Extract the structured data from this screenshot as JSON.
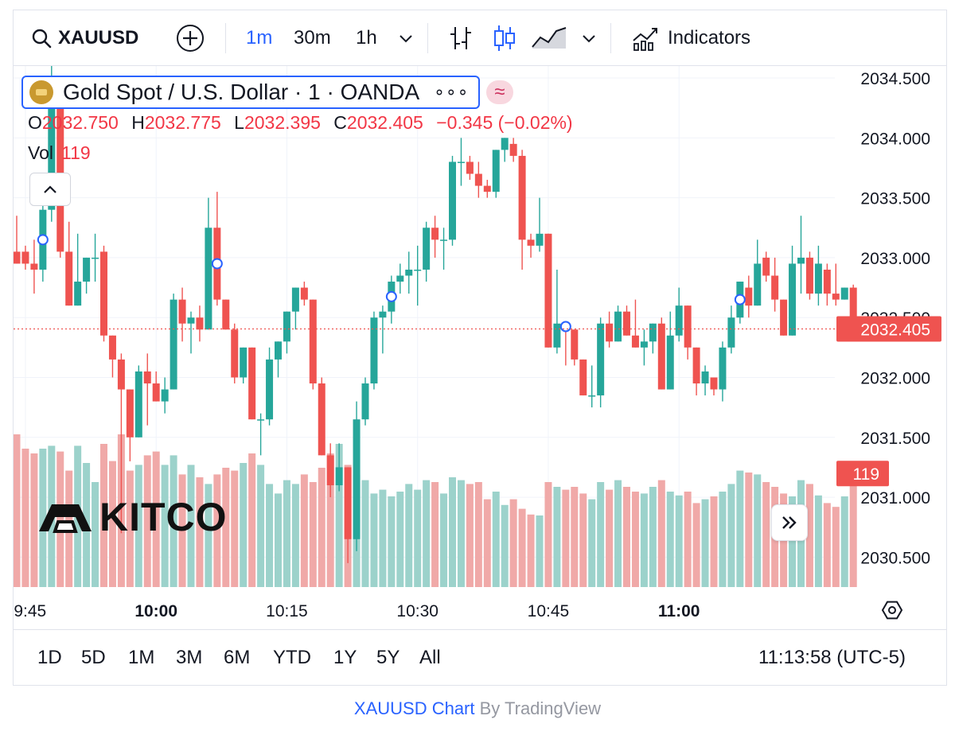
{
  "toolbar": {
    "symbol": "XAUUSD",
    "intervals": [
      "1m",
      "30m",
      "1h"
    ],
    "active_interval": "1m",
    "indicators_label": "Indicators"
  },
  "legend": {
    "title": "Gold Spot / U.S. Dollar · 1 · OANDA",
    "more": "∘∘∘",
    "approx": "≈",
    "o_label": "O",
    "o": "2032.750",
    "h_label": "H",
    "h": "2032.775",
    "l_label": "L",
    "l": "2032.395",
    "c_label": "C",
    "c": "2032.405",
    "change": "−0.345 (−0.02%)",
    "vol_label": "Vol",
    "vol": "119"
  },
  "watermark": "KITCO",
  "range_buttons": [
    "1D",
    "5D",
    "1M",
    "3M",
    "6M",
    "YTD",
    "1Y",
    "5Y",
    "All"
  ],
  "clock": "11:13:58 (UTC-5)",
  "footer": {
    "link": "XAUUSD Chart",
    "rest": " By TradingView"
  },
  "colors": {
    "up": "#26a69a",
    "down": "#ef5350",
    "up_vol": "#9cd2cb",
    "down_vol": "#f0a9a8",
    "accent": "#2962ff"
  },
  "chart_data": {
    "type": "candlestick",
    "symbol": "XAUUSD",
    "interval": "1m",
    "y_ticks": [
      "2034.500",
      "2034.000",
      "2033.500",
      "2033.000",
      "2032.500",
      "2032.000",
      "2031.500",
      "2031.000",
      "2030.500"
    ],
    "ylim": [
      2030.25,
      2034.6
    ],
    "x_ticks": [
      {
        "label": "09:45",
        "minute": 1,
        "bold": false
      },
      {
        "label": "10:00",
        "minute": 16,
        "bold": true
      },
      {
        "label": "10:15",
        "minute": 31,
        "bold": false
      },
      {
        "label": "10:30",
        "minute": 46,
        "bold": false
      },
      {
        "label": "10:45",
        "minute": 61,
        "bold": false
      },
      {
        "label": "11:00",
        "minute": 76,
        "bold": true
      }
    ],
    "last_price": "2032.405",
    "last_price_value": 2032.405,
    "last_volume": "119",
    "event_markers_minute": [
      3,
      23,
      43,
      63,
      83
    ],
    "candles": [
      {
        "o": 2033.05,
        "h": 2033.35,
        "l": 2032.95,
        "c": 2032.95,
        "v": 160
      },
      {
        "o": 2033.05,
        "h": 2033.1,
        "l": 2032.9,
        "c": 2032.95,
        "v": 145
      },
      {
        "o": 2032.95,
        "h": 2033.15,
        "l": 2032.7,
        "c": 2032.9,
        "v": 140
      },
      {
        "o": 2032.9,
        "h": 2033.5,
        "l": 2032.8,
        "c": 2033.4,
        "v": 145
      },
      {
        "o": 2033.4,
        "h": 2034.6,
        "l": 2033.3,
        "c": 2034.5,
        "v": 148
      },
      {
        "o": 2034.4,
        "h": 2034.5,
        "l": 2033.0,
        "c": 2033.05,
        "v": 142
      },
      {
        "o": 2033.05,
        "h": 2033.3,
        "l": 2032.6,
        "c": 2032.6,
        "v": 122
      },
      {
        "o": 2032.6,
        "h": 2033.2,
        "l": 2032.6,
        "c": 2032.8,
        "v": 148
      },
      {
        "o": 2032.8,
        "h": 2033.0,
        "l": 2032.7,
        "c": 2033.0,
        "v": 130
      },
      {
        "o": 2033.0,
        "h": 2033.2,
        "l": 2032.8,
        "c": 2033.0,
        "v": 110
      },
      {
        "o": 2033.05,
        "h": 2033.1,
        "l": 2032.3,
        "c": 2032.35,
        "v": 150
      },
      {
        "o": 2032.35,
        "h": 2032.35,
        "l": 2032.0,
        "c": 2032.15,
        "v": 132
      },
      {
        "o": 2032.15,
        "h": 2032.2,
        "l": 2030.7,
        "c": 2031.9,
        "v": 160
      },
      {
        "o": 2031.9,
        "h": 2031.9,
        "l": 2031.3,
        "c": 2031.5,
        "v": 122
      },
      {
        "o": 2031.5,
        "h": 2032.1,
        "l": 2031.5,
        "c": 2032.05,
        "v": 128
      },
      {
        "o": 2032.05,
        "h": 2032.2,
        "l": 2031.6,
        "c": 2031.95,
        "v": 138
      },
      {
        "o": 2031.95,
        "h": 2032.05,
        "l": 2031.8,
        "c": 2031.8,
        "v": 142
      },
      {
        "o": 2031.8,
        "h": 2032.0,
        "l": 2031.7,
        "c": 2031.9,
        "v": 128
      },
      {
        "o": 2031.9,
        "h": 2032.7,
        "l": 2031.9,
        "c": 2032.65,
        "v": 138
      },
      {
        "o": 2032.65,
        "h": 2032.75,
        "l": 2032.3,
        "c": 2032.45,
        "v": 118
      },
      {
        "o": 2032.45,
        "h": 2032.55,
        "l": 2032.2,
        "c": 2032.5,
        "v": 128
      },
      {
        "o": 2032.5,
        "h": 2032.6,
        "l": 2032.3,
        "c": 2032.4,
        "v": 115
      },
      {
        "o": 2032.4,
        "h": 2033.5,
        "l": 2032.4,
        "c": 2033.25,
        "v": 108
      },
      {
        "o": 2033.25,
        "h": 2033.55,
        "l": 2032.6,
        "c": 2032.65,
        "v": 118
      },
      {
        "o": 2032.65,
        "h": 2032.65,
        "l": 2032.4,
        "c": 2032.4,
        "v": 125
      },
      {
        "o": 2032.4,
        "h": 2032.45,
        "l": 2031.95,
        "c": 2032.0,
        "v": 122
      },
      {
        "o": 2032.0,
        "h": 2032.25,
        "l": 2031.95,
        "c": 2032.25,
        "v": 130
      },
      {
        "o": 2032.25,
        "h": 2032.25,
        "l": 2031.65,
        "c": 2031.65,
        "v": 140
      },
      {
        "o": 2031.65,
        "h": 2031.7,
        "l": 2031.35,
        "c": 2031.65,
        "v": 128
      },
      {
        "o": 2031.65,
        "h": 2032.25,
        "l": 2031.6,
        "c": 2032.15,
        "v": 108
      },
      {
        "o": 2032.15,
        "h": 2032.3,
        "l": 2032.0,
        "c": 2032.3,
        "v": 98
      },
      {
        "o": 2032.3,
        "h": 2032.55,
        "l": 2032.2,
        "c": 2032.55,
        "v": 112
      },
      {
        "o": 2032.55,
        "h": 2032.75,
        "l": 2032.4,
        "c": 2032.75,
        "v": 108
      },
      {
        "o": 2032.75,
        "h": 2032.8,
        "l": 2032.6,
        "c": 2032.65,
        "v": 118
      },
      {
        "o": 2032.65,
        "h": 2032.65,
        "l": 2031.9,
        "c": 2031.95,
        "v": 110
      },
      {
        "o": 2031.95,
        "h": 2032.0,
        "l": 2031.35,
        "c": 2031.35,
        "v": 125
      },
      {
        "o": 2031.35,
        "h": 2031.45,
        "l": 2031.0,
        "c": 2031.1,
        "v": 140
      },
      {
        "o": 2031.1,
        "h": 2031.45,
        "l": 2031.05,
        "c": 2031.25,
        "v": 150
      },
      {
        "o": 2031.25,
        "h": 2031.25,
        "l": 2030.45,
        "c": 2030.65,
        "v": 128
      },
      {
        "o": 2030.65,
        "h": 2031.8,
        "l": 2030.55,
        "c": 2031.65,
        "v": 118
      },
      {
        "o": 2031.65,
        "h": 2032.0,
        "l": 2031.6,
        "c": 2031.95,
        "v": 112
      },
      {
        "o": 2031.95,
        "h": 2032.55,
        "l": 2031.9,
        "c": 2032.5,
        "v": 98
      },
      {
        "o": 2032.5,
        "h": 2032.6,
        "l": 2032.2,
        "c": 2032.55,
        "v": 102
      },
      {
        "o": 2032.55,
        "h": 2032.85,
        "l": 2032.45,
        "c": 2032.8,
        "v": 95
      },
      {
        "o": 2032.8,
        "h": 2032.95,
        "l": 2032.7,
        "c": 2032.85,
        "v": 100
      },
      {
        "o": 2032.85,
        "h": 2033.05,
        "l": 2032.7,
        "c": 2032.9,
        "v": 108
      },
      {
        "o": 2032.9,
        "h": 2033.1,
        "l": 2032.6,
        "c": 2032.9,
        "v": 102
      },
      {
        "o": 2032.9,
        "h": 2033.3,
        "l": 2032.8,
        "c": 2033.25,
        "v": 112
      },
      {
        "o": 2033.25,
        "h": 2033.35,
        "l": 2033.0,
        "c": 2033.15,
        "v": 110
      },
      {
        "o": 2033.15,
        "h": 2033.25,
        "l": 2032.9,
        "c": 2033.15,
        "v": 98
      },
      {
        "o": 2033.15,
        "h": 2033.85,
        "l": 2033.1,
        "c": 2033.8,
        "v": 115
      },
      {
        "o": 2033.8,
        "h": 2034.0,
        "l": 2033.6,
        "c": 2033.8,
        "v": 112
      },
      {
        "o": 2033.8,
        "h": 2033.85,
        "l": 2033.65,
        "c": 2033.7,
        "v": 108
      },
      {
        "o": 2033.7,
        "h": 2033.8,
        "l": 2033.5,
        "c": 2033.6,
        "v": 110
      },
      {
        "o": 2033.6,
        "h": 2033.65,
        "l": 2033.5,
        "c": 2033.55,
        "v": 92
      },
      {
        "o": 2033.55,
        "h": 2033.9,
        "l": 2033.5,
        "c": 2033.9,
        "v": 100
      },
      {
        "o": 2033.9,
        "h": 2034.0,
        "l": 2033.8,
        "c": 2034.0,
        "v": 86
      },
      {
        "o": 2033.95,
        "h": 2034.0,
        "l": 2033.8,
        "c": 2033.85,
        "v": 92
      },
      {
        "o": 2033.85,
        "h": 2033.9,
        "l": 2032.9,
        "c": 2033.15,
        "v": 82
      },
      {
        "o": 2033.15,
        "h": 2033.2,
        "l": 2033.0,
        "c": 2033.1,
        "v": 76
      },
      {
        "o": 2033.1,
        "h": 2033.5,
        "l": 2033.05,
        "c": 2033.2,
        "v": 75
      },
      {
        "o": 2033.2,
        "h": 2033.2,
        "l": 2032.25,
        "c": 2032.25,
        "v": 110
      },
      {
        "o": 2032.25,
        "h": 2032.9,
        "l": 2032.2,
        "c": 2032.45,
        "v": 105
      },
      {
        "o": 2032.45,
        "h": 2032.45,
        "l": 2032.1,
        "c": 2032.4,
        "v": 102
      },
      {
        "o": 2032.4,
        "h": 2032.4,
        "l": 2032.1,
        "c": 2032.15,
        "v": 105
      },
      {
        "o": 2032.15,
        "h": 2032.15,
        "l": 2031.85,
        "c": 2031.85,
        "v": 98
      },
      {
        "o": 2031.85,
        "h": 2032.1,
        "l": 2031.75,
        "c": 2031.85,
        "v": 92
      },
      {
        "o": 2031.85,
        "h": 2032.5,
        "l": 2031.75,
        "c": 2032.45,
        "v": 110
      },
      {
        "o": 2032.45,
        "h": 2032.55,
        "l": 2032.25,
        "c": 2032.3,
        "v": 102
      },
      {
        "o": 2032.3,
        "h": 2032.6,
        "l": 2032.3,
        "c": 2032.55,
        "v": 112
      },
      {
        "o": 2032.55,
        "h": 2032.6,
        "l": 2032.35,
        "c": 2032.35,
        "v": 105
      },
      {
        "o": 2032.35,
        "h": 2032.65,
        "l": 2032.25,
        "c": 2032.25,
        "v": 100
      },
      {
        "o": 2032.25,
        "h": 2032.4,
        "l": 2032.1,
        "c": 2032.3,
        "v": 98
      },
      {
        "o": 2032.3,
        "h": 2032.45,
        "l": 2032.2,
        "c": 2032.45,
        "v": 105
      },
      {
        "o": 2032.45,
        "h": 2032.5,
        "l": 2031.9,
        "c": 2031.9,
        "v": 112
      },
      {
        "o": 2031.9,
        "h": 2032.55,
        "l": 2031.9,
        "c": 2032.35,
        "v": 100
      },
      {
        "o": 2032.35,
        "h": 2032.75,
        "l": 2032.3,
        "c": 2032.6,
        "v": 96
      },
      {
        "o": 2032.6,
        "h": 2032.6,
        "l": 2032.15,
        "c": 2032.25,
        "v": 100
      },
      {
        "o": 2032.25,
        "h": 2032.25,
        "l": 2031.85,
        "c": 2031.95,
        "v": 88
      },
      {
        "o": 2031.95,
        "h": 2032.1,
        "l": 2031.85,
        "c": 2032.05,
        "v": 92
      },
      {
        "o": 2032.0,
        "h": 2032.0,
        "l": 2031.85,
        "c": 2031.9,
        "v": 95
      },
      {
        "o": 2031.9,
        "h": 2032.3,
        "l": 2031.8,
        "c": 2032.25,
        "v": 100
      },
      {
        "o": 2032.25,
        "h": 2032.6,
        "l": 2032.2,
        "c": 2032.5,
        "v": 108
      },
      {
        "o": 2032.5,
        "h": 2032.8,
        "l": 2032.45,
        "c": 2032.8,
        "v": 122
      },
      {
        "o": 2032.75,
        "h": 2032.85,
        "l": 2032.5,
        "c": 2032.6,
        "v": 120
      },
      {
        "o": 2032.6,
        "h": 2033.15,
        "l": 2032.6,
        "c": 2032.95,
        "v": 118
      },
      {
        "o": 2033.0,
        "h": 2033.05,
        "l": 2032.8,
        "c": 2032.85,
        "v": 110
      },
      {
        "o": 2032.85,
        "h": 2033.0,
        "l": 2032.55,
        "c": 2032.65,
        "v": 105
      },
      {
        "o": 2032.65,
        "h": 2032.65,
        "l": 2032.35,
        "c": 2032.35,
        "v": 98
      },
      {
        "o": 2032.35,
        "h": 2033.1,
        "l": 2032.35,
        "c": 2032.95,
        "v": 95
      },
      {
        "o": 2032.95,
        "h": 2033.35,
        "l": 2032.7,
        "c": 2033.0,
        "v": 112
      },
      {
        "o": 2033.0,
        "h": 2033.05,
        "l": 2032.65,
        "c": 2032.7,
        "v": 108
      },
      {
        "o": 2032.7,
        "h": 2033.1,
        "l": 2032.6,
        "c": 2032.95,
        "v": 96
      },
      {
        "o": 2032.9,
        "h": 2032.95,
        "l": 2032.6,
        "c": 2032.7,
        "v": 88
      },
      {
        "o": 2032.7,
        "h": 2032.95,
        "l": 2032.6,
        "c": 2032.65,
        "v": 84
      },
      {
        "o": 2032.65,
        "h": 2032.75,
        "l": 2032.65,
        "c": 2032.75,
        "v": 95
      },
      {
        "o": 2032.75,
        "h": 2032.775,
        "l": 2032.395,
        "c": 2032.405,
        "v": 119
      }
    ]
  }
}
